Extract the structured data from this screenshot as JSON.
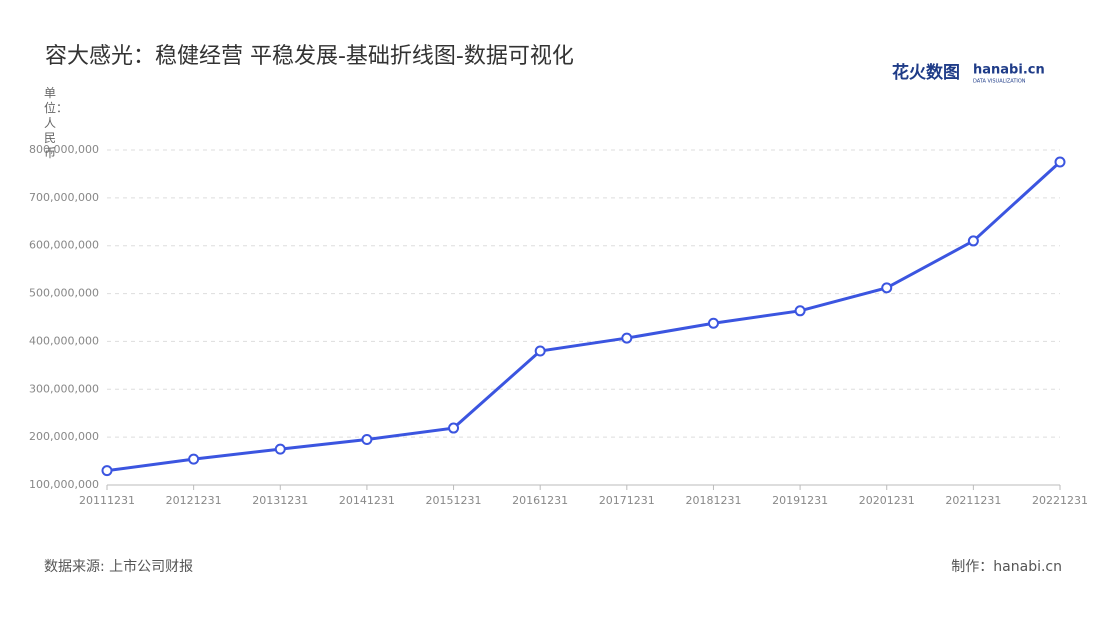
{
  "chart_data": {
    "type": "line",
    "title": "容大感光：稳健经营 平稳发展-基础折线图-数据可视化",
    "y_axis_label": "单位：人民币",
    "logo": {
      "text": "花火数图",
      "site": "hanabi.cn",
      "tagline": "DATA VISUALIZATION"
    },
    "source": "数据来源: 上市公司财报",
    "credit": "制作：hanabi.cn",
    "categories": [
      "20111231",
      "20121231",
      "20131231",
      "20141231",
      "20151231",
      "20161231",
      "20171231",
      "20181231",
      "20191231",
      "20201231",
      "20211231",
      "20221231"
    ],
    "values": [
      130000000,
      154000000,
      175000000,
      195000000,
      219000000,
      380000000,
      407000000,
      438000000,
      464000000,
      512000000,
      610000000,
      775000000
    ],
    "color": "#3b55e0",
    "ylim": [
      100000000,
      800000000
    ],
    "yticks": [
      {
        "value": 100000000,
        "label": "100,000,000"
      },
      {
        "value": 200000000,
        "label": "200,000,000"
      },
      {
        "value": 300000000,
        "label": "300,000,000"
      },
      {
        "value": 400000000,
        "label": "400,000,000"
      },
      {
        "value": 500000000,
        "label": "500,000,000"
      },
      {
        "value": 600000000,
        "label": "600,000,000"
      },
      {
        "value": 700000000,
        "label": "700,000,000"
      },
      {
        "value": 800000000,
        "label": "800,000,000"
      }
    ],
    "grid": true
  }
}
